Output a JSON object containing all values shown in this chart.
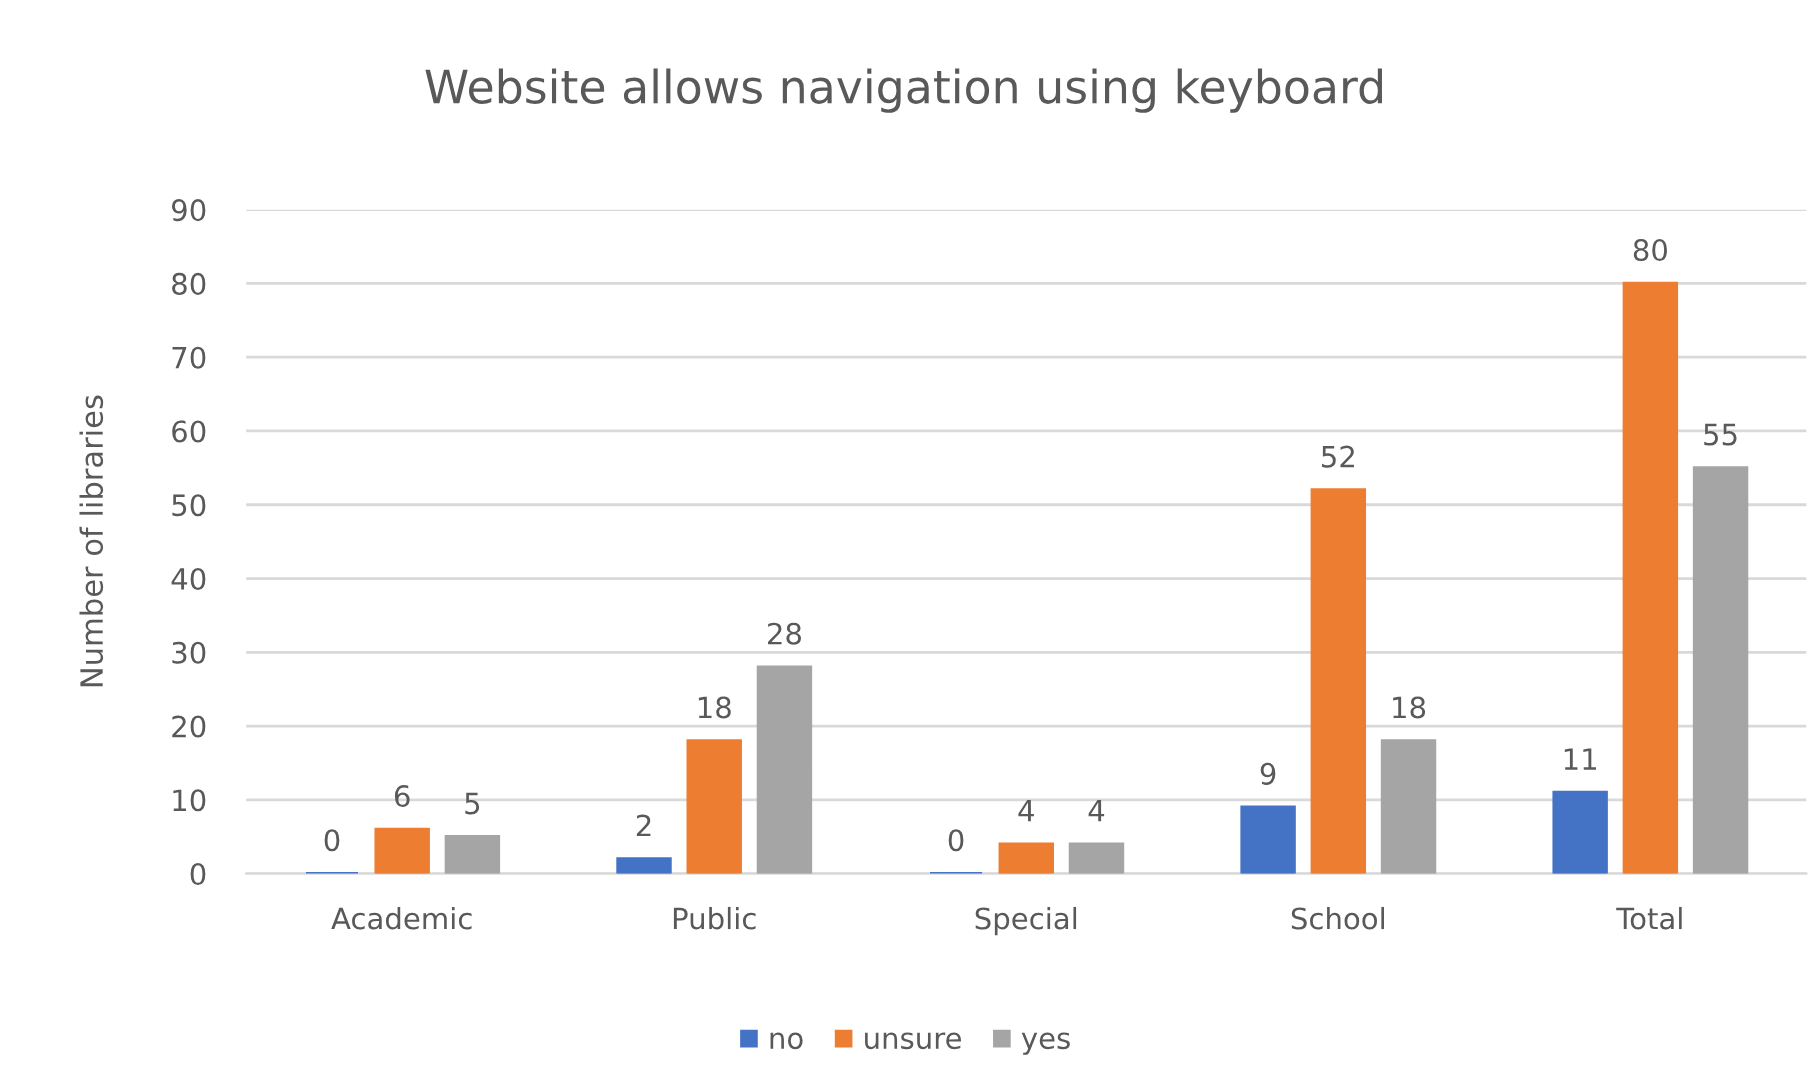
{
  "chart_data": {
    "type": "bar",
    "title": "Website allows navigation using keyboard",
    "ylabel": "Number of libraries",
    "categories": [
      "Academic",
      "Public",
      "Special",
      "School",
      "Total"
    ],
    "series": [
      {
        "name": "no",
        "color": "#4472c4",
        "values": [
          0,
          2,
          0,
          9,
          11
        ]
      },
      {
        "name": "unsure",
        "color": "#ed7d31",
        "values": [
          6,
          18,
          4,
          52,
          80
        ]
      },
      {
        "name": "yes",
        "color": "#a5a5a5",
        "values": [
          5,
          28,
          4,
          18,
          55
        ]
      }
    ],
    "ylim": [
      0,
      90
    ],
    "yticks": [
      0,
      10,
      20,
      30,
      40,
      50,
      60,
      70,
      80,
      90
    ],
    "grid": "y",
    "legend": "bottom",
    "data_labels": true
  }
}
